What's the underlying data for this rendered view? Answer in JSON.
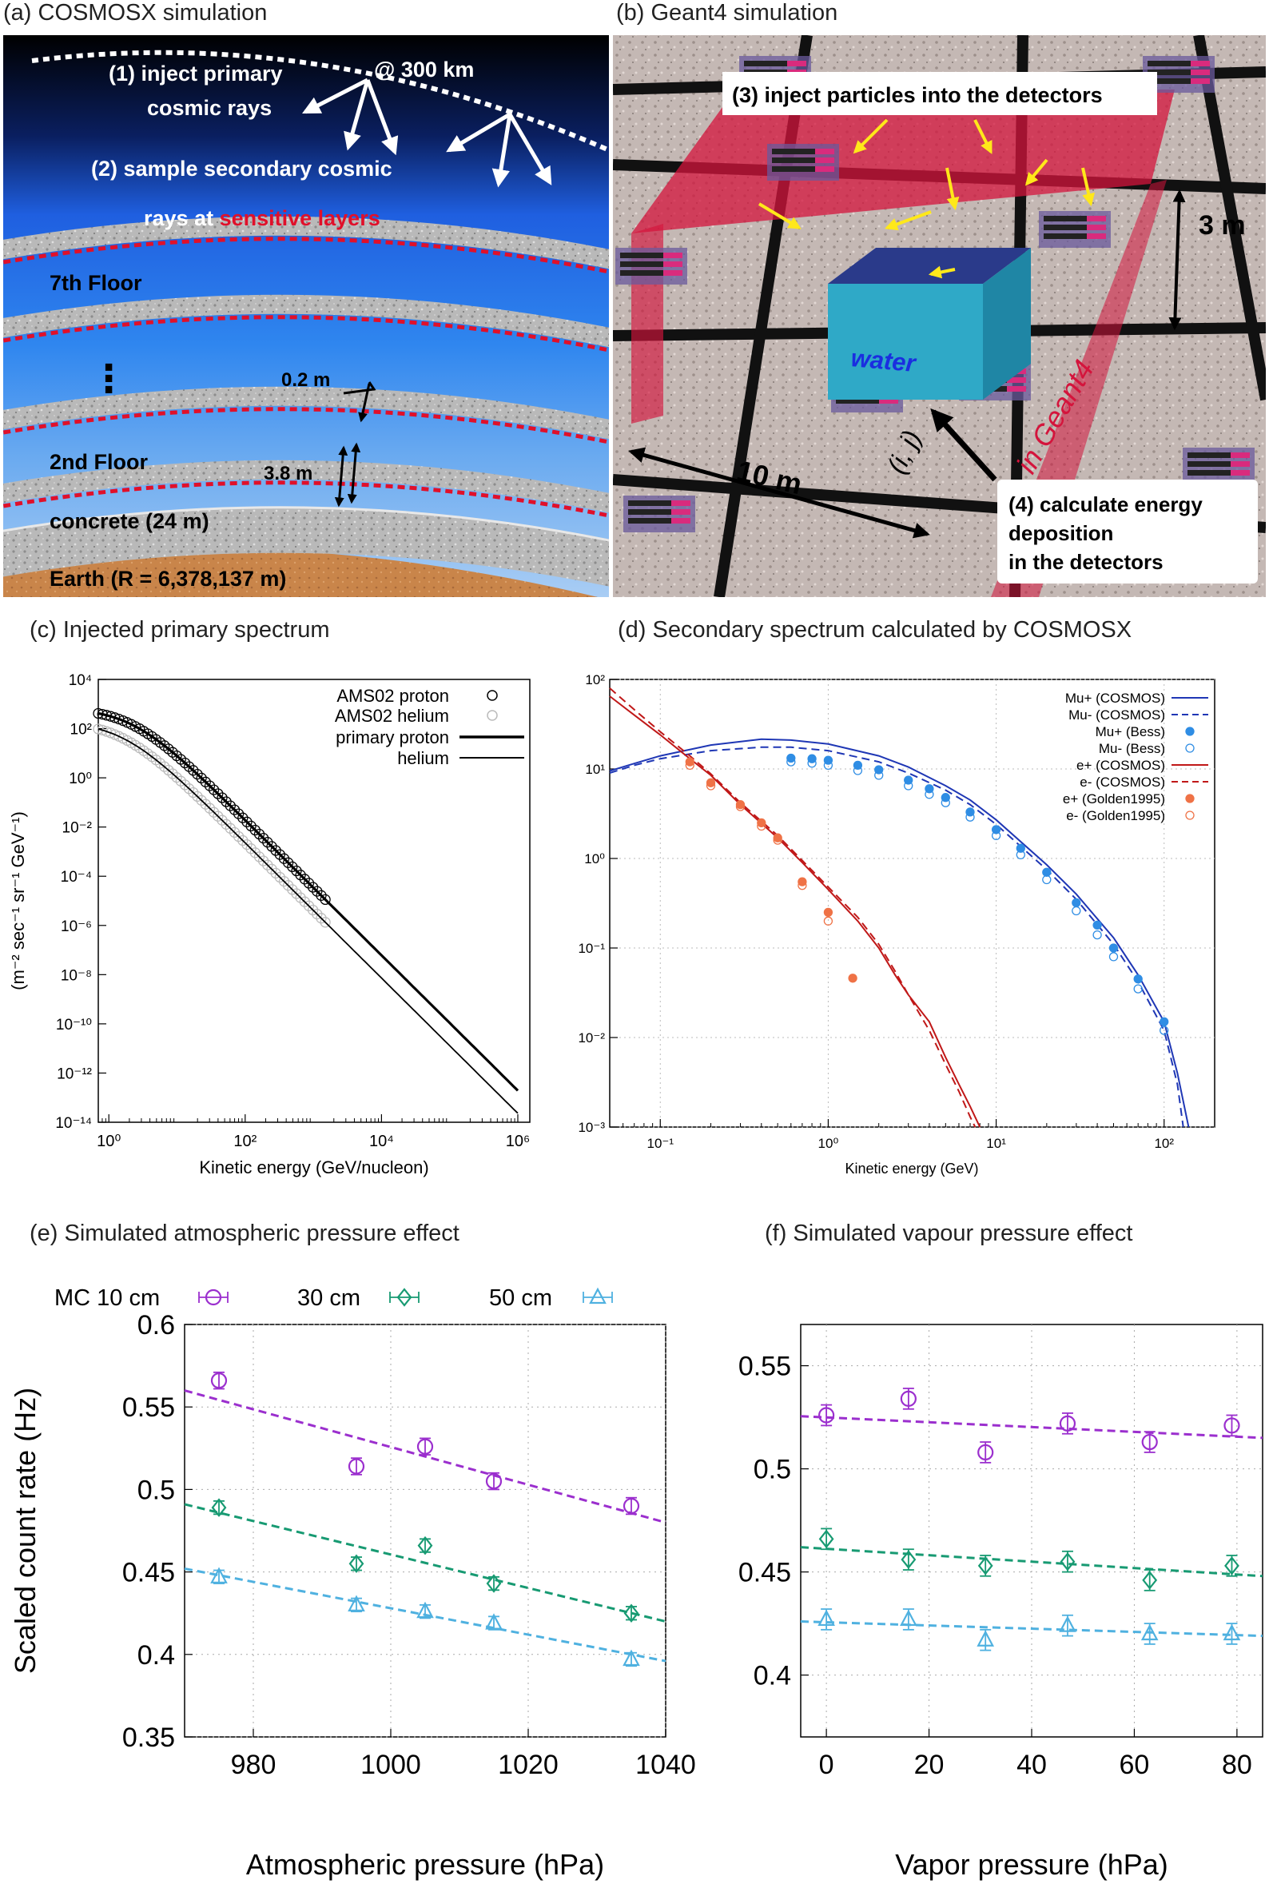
{
  "panels": {
    "a": {
      "title": "(a) COSMOSX simulation",
      "step1_line1": "(1) inject primary",
      "step1_line2": "cosmic rays",
      "altitude": "@ 300 km",
      "step2_line1": "(2) sample secondary cosmic",
      "step2_line2a": "rays at ",
      "step2_line2b": "sensitive layers",
      "floor7": "7th Floor",
      "dots": "⋮",
      "thickness_slab": "0.2 m",
      "floor2": "2nd Floor",
      "floor_height": "3.8 m",
      "concrete": "concrete (24 m)",
      "earth": "Earth (R = 6,378,137 m)"
    },
    "b": {
      "title": "(b) Geant4 simulation",
      "step3": "(3) inject particles into the detectors",
      "height": "3 m",
      "water": "water",
      "span": "10 m",
      "index": "(i, j)",
      "in_geant4": "in Geant4",
      "step4_line1": "(4) calculate energy",
      "step4_line2": "deposition",
      "step4_line3": "in the detectors",
      "colors": {
        "sensor": "#d92b7d",
        "box": "#2fa9c7",
        "plane": "#d4143c"
      }
    }
  },
  "chart_data": [
    {
      "id": "c",
      "type": "line",
      "title": "(c) Injected primary spectrum",
      "xlabel": "Kinetic energy (GeV/nucleon)",
      "ylabel": "(m⁻² sec⁻¹ sr⁻¹ GeV⁻¹)",
      "xscale": "log",
      "yscale": "log",
      "xlim": [
        0.7,
        1500000
      ],
      "ylim": [
        1e-14,
        10000
      ],
      "x_tick_labels": [
        "10⁰",
        "10²",
        "10⁴",
        "10⁶"
      ],
      "y_tick_labels": [
        "10⁻¹⁴",
        "10⁻¹²",
        "10⁻¹⁰",
        "10⁻⁸",
        "10⁻⁶",
        "10⁻⁴",
        "10⁻²",
        "10⁰",
        "10²",
        "10⁴"
      ],
      "legend": {
        "position": "top-right",
        "entries": [
          "AMS02 proton",
          "AMS02 helium",
          "primary proton",
          "helium"
        ]
      },
      "series": [
        {
          "name": "AMS02 proton",
          "style": "open-circle",
          "color": "#000000",
          "x_range": [
            0.7,
            1500
          ],
          "model": "proton"
        },
        {
          "name": "AMS02 helium",
          "style": "open-circle",
          "color": "#bbbbbb",
          "x_range": [
            0.7,
            1500
          ],
          "model": "helium"
        },
        {
          "name": "primary proton",
          "style": "line-thick",
          "color": "#000000",
          "x_range": [
            0.7,
            1000000
          ],
          "model": "proton"
        },
        {
          "name": "helium",
          "style": "line",
          "color": "#000000",
          "x_range": [
            0.7,
            1000000
          ],
          "model": "helium"
        }
      ],
      "models": {
        "proton": {
          "norm": 700,
          "e0": 2.2,
          "a": 0.65,
          "index": 2.75
        },
        "helium": {
          "norm": 200,
          "e0": 1.6,
          "a": 0.55,
          "index": 2.75
        }
      }
    },
    {
      "id": "d",
      "type": "line",
      "title": "(d) Secondary spectrum calculated by COSMOSX",
      "xlabel": "Kinetic energy (GeV)",
      "xscale": "log",
      "yscale": "log",
      "xlim": [
        0.05,
        200
      ],
      "ylim": [
        0.001,
        100
      ],
      "x_tick_labels": [
        "10⁻¹",
        "10⁰",
        "10¹",
        "10²"
      ],
      "y_tick_labels": [
        "10⁻³",
        "10⁻²",
        "10⁻¹",
        "10⁰",
        "10¹",
        "10²"
      ],
      "legend": {
        "position": "top-right",
        "entries": [
          "Mu+ (COSMOS)",
          "Mu- (COSMOS)",
          "Mu+ (Bess)",
          "Mu- (Bess)",
          "e+ (COSMOS)",
          "e- (COSMOS)",
          "e+ (Golden1995)",
          "e- (Golden1995)"
        ]
      },
      "series": [
        {
          "name": "Mu+ (COSMOS)",
          "style": "solid",
          "color": "#1f37b5",
          "points": [
            [
              0.05,
              9.5
            ],
            [
              0.07,
              11.5
            ],
            [
              0.1,
              14
            ],
            [
              0.2,
              18.5
            ],
            [
              0.4,
              21.5
            ],
            [
              0.6,
              21
            ],
            [
              1,
              19
            ],
            [
              2,
              14
            ],
            [
              3,
              10.5
            ],
            [
              5,
              6.5
            ],
            [
              7,
              4.5
            ],
            [
              10,
              2.7
            ],
            [
              20,
              0.85
            ],
            [
              30,
              0.4
            ],
            [
              50,
              0.13
            ],
            [
              70,
              0.05
            ],
            [
              100,
              0.015
            ],
            [
              120,
              0.004
            ],
            [
              140,
              0.001
            ]
          ]
        },
        {
          "name": "Mu- (COSMOS)",
          "style": "dashed",
          "color": "#1f37b5",
          "points": [
            [
              0.05,
              9
            ],
            [
              0.07,
              11
            ],
            [
              0.1,
              13
            ],
            [
              0.2,
              16
            ],
            [
              0.4,
              17.5
            ],
            [
              0.6,
              17.5
            ],
            [
              1,
              16
            ],
            [
              2,
              12
            ],
            [
              3,
              9
            ],
            [
              5,
              5.8
            ],
            [
              7,
              4
            ],
            [
              10,
              2.4
            ],
            [
              20,
              0.75
            ],
            [
              30,
              0.35
            ],
            [
              50,
              0.11
            ],
            [
              70,
              0.042
            ],
            [
              100,
              0.012
            ],
            [
              120,
              0.003
            ],
            [
              130,
              0.001
            ]
          ]
        },
        {
          "name": "Mu+ (Bess)",
          "style": "filled-circle",
          "color": "#2f8de4",
          "points": [
            [
              0.6,
              13.2
            ],
            [
              0.8,
              13
            ],
            [
              1,
              12.5
            ],
            [
              1.5,
              11
            ],
            [
              2,
              9.8
            ],
            [
              3,
              7.5
            ],
            [
              4,
              6
            ],
            [
              5,
              4.8
            ],
            [
              7,
              3.3
            ],
            [
              10,
              2.1
            ],
            [
              14,
              1.3
            ],
            [
              20,
              0.7
            ],
            [
              30,
              0.32
            ],
            [
              40,
              0.18
            ],
            [
              50,
              0.1
            ],
            [
              70,
              0.045
            ],
            [
              100,
              0.015
            ]
          ]
        },
        {
          "name": "Mu- (Bess)",
          "style": "open-circle",
          "color": "#2f8de4",
          "points": [
            [
              0.6,
              12
            ],
            [
              0.8,
              11.6
            ],
            [
              1,
              11
            ],
            [
              1.5,
              9.6
            ],
            [
              2,
              8.5
            ],
            [
              3,
              6.5
            ],
            [
              4,
              5.2
            ],
            [
              5,
              4.2
            ],
            [
              7,
              2.9
            ],
            [
              10,
              1.8
            ],
            [
              14,
              1.1
            ],
            [
              20,
              0.58
            ],
            [
              30,
              0.26
            ],
            [
              40,
              0.14
            ],
            [
              50,
              0.08
            ],
            [
              70,
              0.035
            ],
            [
              100,
              0.012
            ]
          ]
        },
        {
          "name": "e+ (COSMOS)",
          "style": "solid",
          "color": "#c01818",
          "points": [
            [
              0.05,
              65
            ],
            [
              0.07,
              40
            ],
            [
              0.1,
              24
            ],
            [
              0.15,
              13
            ],
            [
              0.2,
              8.5
            ],
            [
              0.3,
              4
            ],
            [
              0.5,
              1.7
            ],
            [
              0.7,
              0.9
            ],
            [
              1,
              0.45
            ],
            [
              1.5,
              0.2
            ],
            [
              2,
              0.1
            ],
            [
              2.5,
              0.05
            ],
            [
              3,
              0.03
            ],
            [
              4,
              0.015
            ],
            [
              5,
              0.006
            ],
            [
              6,
              0.003
            ],
            [
              7,
              0.0017
            ],
            [
              8,
              0.001
            ]
          ]
        },
        {
          "name": "e- (COSMOS)",
          "style": "dashed",
          "color": "#c01818",
          "points": [
            [
              0.05,
              80
            ],
            [
              0.07,
              46
            ],
            [
              0.1,
              26
            ],
            [
              0.15,
              14
            ],
            [
              0.2,
              8.8
            ],
            [
              0.3,
              4.2
            ],
            [
              0.5,
              1.8
            ],
            [
              0.7,
              0.95
            ],
            [
              1,
              0.48
            ],
            [
              1.5,
              0.22
            ],
            [
              2,
              0.11
            ],
            [
              2.5,
              0.055
            ],
            [
              3,
              0.03
            ],
            [
              4,
              0.012
            ],
            [
              5,
              0.005
            ],
            [
              6,
              0.0025
            ],
            [
              7,
              0.0013
            ],
            [
              7.5,
              0.001
            ]
          ]
        },
        {
          "name": "e+ (Golden1995)",
          "style": "filled-circle",
          "color": "#ef7246",
          "points": [
            [
              0.15,
              12
            ],
            [
              0.2,
              7
            ],
            [
              0.3,
              4
            ],
            [
              0.4,
              2.5
            ],
            [
              0.5,
              1.7
            ],
            [
              0.7,
              0.55
            ],
            [
              1,
              0.25
            ],
            [
              1.4,
              0.046
            ]
          ]
        },
        {
          "name": "e- (Golden1995)",
          "style": "open-circle",
          "color": "#ef7246",
          "points": [
            [
              0.15,
              11
            ],
            [
              0.2,
              6.5
            ],
            [
              0.3,
              3.8
            ],
            [
              0.4,
              2.3
            ],
            [
              0.5,
              1.6
            ],
            [
              0.7,
              0.5
            ],
            [
              1,
              0.2
            ]
          ]
        }
      ]
    },
    {
      "id": "e",
      "type": "scatter",
      "title": "(e) Simulated atmospheric pressure effect",
      "xlabel": "Atmospheric pressure (hPa)",
      "ylabel": "Scaled count rate (Hz)",
      "xlim": [
        970,
        1040
      ],
      "ylim": [
        0.35,
        0.6
      ],
      "x_ticks": [
        980,
        1000,
        1020,
        1040
      ],
      "y_ticks": [
        0.35,
        0.4,
        0.45,
        0.5,
        0.55,
        0.6
      ],
      "x_tick_labels": [
        "980",
        "1000",
        "1020",
        "1040"
      ],
      "y_tick_labels": [
        "0.35",
        "0.4",
        "0.45",
        "0.5",
        "0.55",
        "0.6"
      ],
      "legend": {
        "position": "top",
        "entries": [
          "MC 10 cm",
          "30 cm",
          "50 cm"
        ]
      },
      "series": [
        {
          "name": "MC 10 cm",
          "marker": "circle",
          "color": "#9b2fce",
          "x": [
            975,
            995,
            1005,
            1015,
            1035
          ],
          "y": [
            0.566,
            0.514,
            0.526,
            0.505,
            0.49
          ],
          "err": 0.005,
          "fit": [
            0.56,
            0.48
          ]
        },
        {
          "name": "30 cm",
          "marker": "diamond",
          "color": "#179a72",
          "x": [
            975,
            995,
            1005,
            1015,
            1035
          ],
          "y": [
            0.489,
            0.455,
            0.466,
            0.443,
            0.425
          ],
          "err": 0.004,
          "fit": [
            0.491,
            0.42
          ]
        },
        {
          "name": "50 cm",
          "marker": "triangle",
          "color": "#4fb1e0",
          "x": [
            975,
            995,
            1005,
            1015,
            1035
          ],
          "y": [
            0.447,
            0.43,
            0.426,
            0.419,
            0.397
          ],
          "err": 0.004,
          "fit": [
            0.452,
            0.396
          ]
        }
      ]
    },
    {
      "id": "f",
      "type": "scatter",
      "title": "(f) Simulated vapour pressure effect",
      "xlabel": "Vapor pressure (hPa)",
      "xlim": [
        -5,
        85
      ],
      "ylim": [
        0.37,
        0.57
      ],
      "x_ticks": [
        0,
        20,
        40,
        60,
        80
      ],
      "y_ticks": [
        0.4,
        0.45,
        0.5,
        0.55
      ],
      "x_tick_labels": [
        "0",
        "20",
        "40",
        "60",
        "80"
      ],
      "y_tick_labels": [
        "0.4",
        "0.45",
        "0.5",
        "0.55"
      ],
      "series": [
        {
          "name": "MC 10 cm",
          "marker": "circle",
          "color": "#9b2fce",
          "x": [
            0,
            16,
            31,
            47,
            63,
            79
          ],
          "y": [
            0.526,
            0.534,
            0.508,
            0.522,
            0.513,
            0.521
          ],
          "err": 0.005,
          "fit": [
            0.5255,
            0.515
          ]
        },
        {
          "name": "30 cm",
          "marker": "diamond",
          "color": "#179a72",
          "x": [
            0,
            16,
            31,
            47,
            63,
            79
          ],
          "y": [
            0.466,
            0.456,
            0.453,
            0.455,
            0.446,
            0.453
          ],
          "err": 0.005,
          "fit": [
            0.462,
            0.448
          ]
        },
        {
          "name": "50 cm",
          "marker": "triangle",
          "color": "#4fb1e0",
          "x": [
            0,
            16,
            31,
            47,
            63,
            79
          ],
          "y": [
            0.427,
            0.427,
            0.417,
            0.424,
            0.42,
            0.42
          ],
          "err": 0.005,
          "fit": [
            0.426,
            0.419
          ]
        }
      ]
    }
  ]
}
